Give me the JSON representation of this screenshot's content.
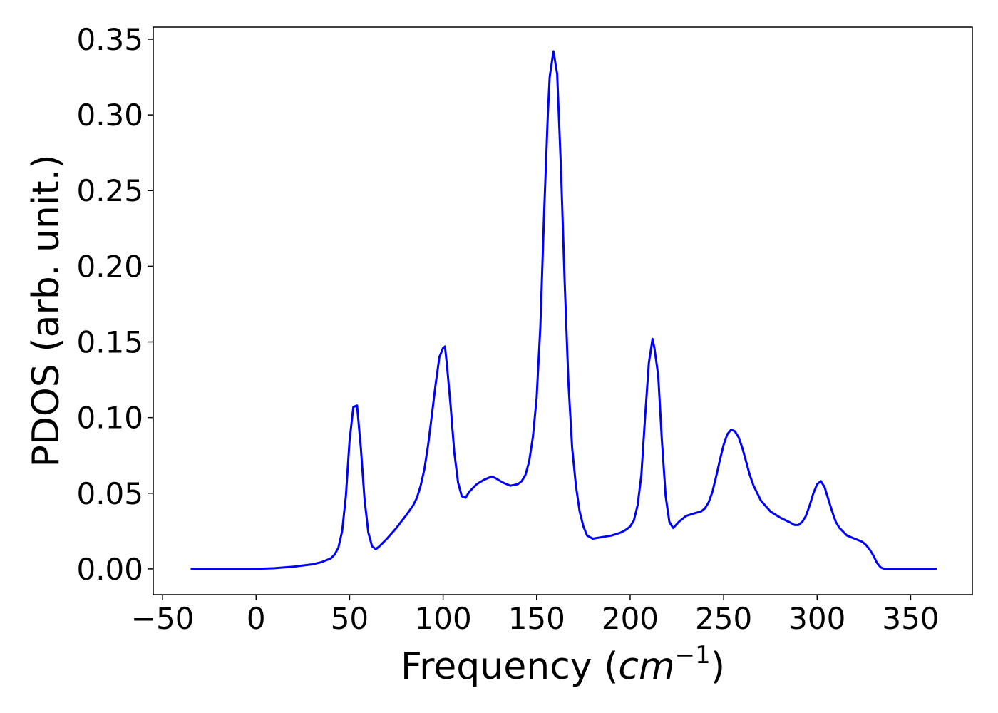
{
  "chart_data": {
    "type": "line",
    "xlabel": {
      "prefix": "Frequency (",
      "unit": "cm",
      "exponent": "−1",
      "suffix": ")"
    },
    "ylabel": "PDOS (arb. unit.)",
    "xlim": [
      -55,
      383
    ],
    "ylim": [
      -0.017,
      0.358
    ],
    "grid": false,
    "line_color": "#0000ff",
    "xticks": [
      {
        "value": -50,
        "label": "−50"
      },
      {
        "value": 0,
        "label": "0"
      },
      {
        "value": 50,
        "label": "50"
      },
      {
        "value": 100,
        "label": "100"
      },
      {
        "value": 150,
        "label": "150"
      },
      {
        "value": 200,
        "label": "200"
      },
      {
        "value": 250,
        "label": "250"
      },
      {
        "value": 300,
        "label": "300"
      },
      {
        "value": 350,
        "label": "350"
      }
    ],
    "yticks": [
      {
        "value": 0.0,
        "label": "0.00"
      },
      {
        "value": 0.05,
        "label": "0.05"
      },
      {
        "value": 0.1,
        "label": "0.10"
      },
      {
        "value": 0.15,
        "label": "0.15"
      },
      {
        "value": 0.2,
        "label": "0.20"
      },
      {
        "value": 0.25,
        "label": "0.25"
      },
      {
        "value": 0.3,
        "label": "0.30"
      },
      {
        "value": 0.35,
        "label": "0.35"
      }
    ],
    "series": [
      {
        "x": [
          -35,
          0,
          10,
          20,
          30,
          35,
          40,
          42,
          44,
          46,
          48,
          50,
          52,
          54,
          56,
          58,
          60,
          62,
          64,
          66,
          70,
          75,
          80,
          84,
          86,
          88,
          90,
          92,
          94,
          96,
          98,
          100,
          101,
          102,
          104,
          106,
          108,
          110,
          112,
          114,
          118,
          122,
          126,
          128,
          132,
          136,
          140,
          142,
          144,
          146,
          148,
          150,
          152,
          154,
          156,
          157,
          159,
          161,
          163,
          165,
          167,
          169,
          171,
          173,
          175,
          177,
          180,
          185,
          190,
          195,
          198,
          200,
          202,
          204,
          206,
          208,
          210,
          212,
          213,
          215,
          217,
          219,
          221,
          223,
          226,
          230,
          235,
          238,
          240,
          242,
          244,
          246,
          248,
          250,
          252,
          254,
          256,
          258,
          260,
          262,
          264,
          266,
          270,
          275,
          280,
          285,
          288,
          290,
          292,
          294,
          296,
          298,
          300,
          302,
          304,
          306,
          308,
          310,
          312,
          316,
          320,
          324,
          326,
          328,
          330,
          332,
          334,
          336,
          340,
          350,
          364
        ],
        "y": [
          0.0,
          0.0,
          0.0005,
          0.0015,
          0.003,
          0.0045,
          0.007,
          0.0095,
          0.014,
          0.025,
          0.048,
          0.085,
          0.107,
          0.108,
          0.08,
          0.046,
          0.024,
          0.015,
          0.013,
          0.015,
          0.02,
          0.027,
          0.035,
          0.042,
          0.047,
          0.055,
          0.066,
          0.082,
          0.102,
          0.122,
          0.14,
          0.146,
          0.147,
          0.135,
          0.108,
          0.077,
          0.057,
          0.048,
          0.047,
          0.051,
          0.056,
          0.059,
          0.061,
          0.06,
          0.057,
          0.055,
          0.056,
          0.058,
          0.062,
          0.071,
          0.087,
          0.113,
          0.16,
          0.235,
          0.3,
          0.325,
          0.342,
          0.327,
          0.265,
          0.19,
          0.123,
          0.08,
          0.055,
          0.038,
          0.028,
          0.022,
          0.02,
          0.021,
          0.022,
          0.024,
          0.026,
          0.028,
          0.032,
          0.042,
          0.062,
          0.1,
          0.136,
          0.152,
          0.146,
          0.128,
          0.085,
          0.048,
          0.031,
          0.027,
          0.031,
          0.035,
          0.037,
          0.038,
          0.04,
          0.044,
          0.051,
          0.061,
          0.072,
          0.082,
          0.089,
          0.092,
          0.091,
          0.087,
          0.08,
          0.071,
          0.062,
          0.055,
          0.045,
          0.038,
          0.034,
          0.031,
          0.029,
          0.029,
          0.031,
          0.035,
          0.042,
          0.05,
          0.056,
          0.058,
          0.054,
          0.046,
          0.038,
          0.031,
          0.027,
          0.022,
          0.02,
          0.018,
          0.016,
          0.013,
          0.009,
          0.004,
          0.001,
          0.0,
          0.0,
          0.0,
          0.0
        ]
      }
    ]
  }
}
